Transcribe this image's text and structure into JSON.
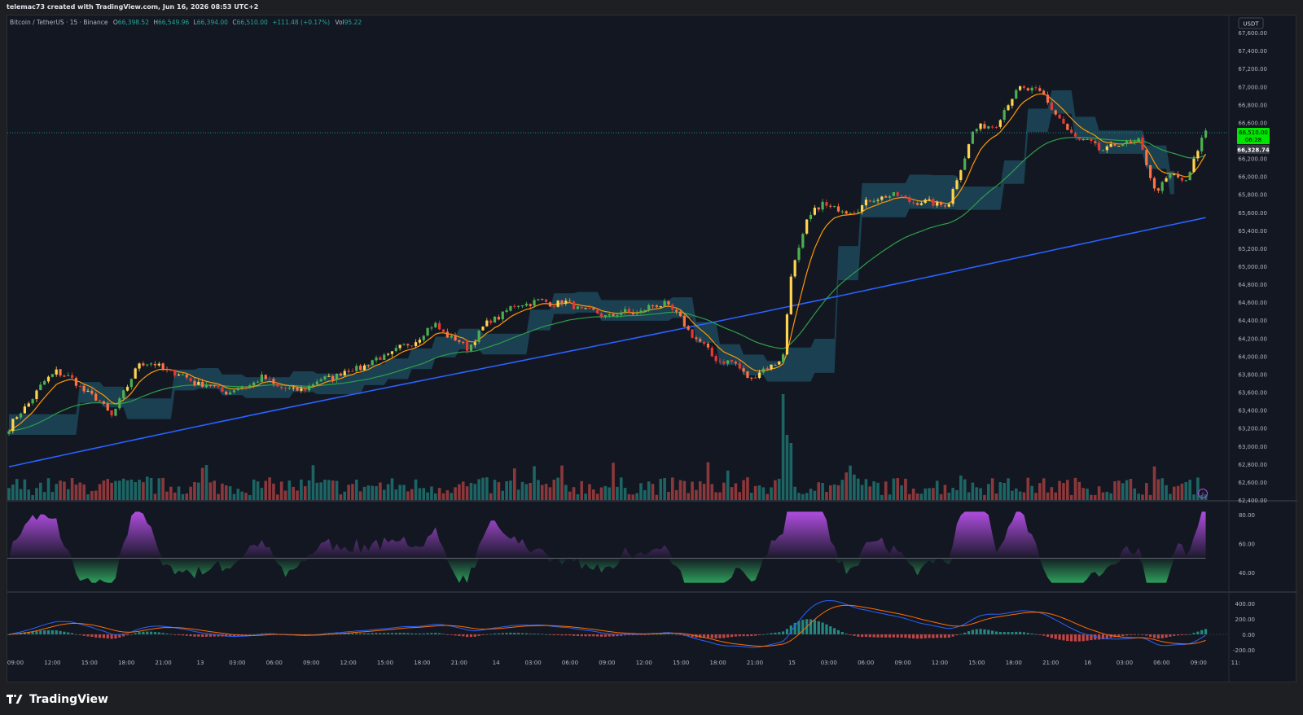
{
  "header": {
    "credit": "telemac73 created with TradingView.com, Jun 16, 2026 08:53 UTC+2"
  },
  "legend": {
    "symbol": "Bitcoin / TetherUS · 15 · Binance",
    "open_label": "O",
    "open": "66,398.52",
    "high_label": "H",
    "high": "66,549.96",
    "low_label": "L",
    "low": "66,394.00",
    "close_label": "C",
    "close": "66,510.00",
    "change": "+111.48 (+0.17%)",
    "vol_label": "Vol",
    "vol": "95.22"
  },
  "price_axis": {
    "currency": "USDT",
    "ticks": [
      "67,600.00",
      "67,400.00",
      "67,200.00",
      "67,000.00",
      "66,800.00",
      "66,600.00",
      "66,400.00",
      "66,200.00",
      "66,000.00",
      "65,800.00",
      "65,600.00",
      "65,400.00",
      "65,200.00",
      "65,000.00",
      "64,800.00",
      "64,600.00",
      "64,400.00",
      "64,200.00",
      "64,000.00",
      "63,800.00",
      "63,600.00",
      "63,400.00",
      "63,200.00",
      "63,000.00",
      "62,800.00",
      "62,600.00",
      "62,400.00"
    ],
    "last_price": "66,510.00",
    "countdown": "06:28",
    "indicator_value": "66,328.74"
  },
  "rsi_axis": {
    "ticks": [
      "80.00",
      "60.00",
      "40.00"
    ]
  },
  "macd_axis": {
    "ticks": [
      "400.00",
      "200.00",
      "0.00",
      "-200.00"
    ]
  },
  "time_axis": {
    "labels": [
      "09:00",
      "12:00",
      "15:00",
      "18:00",
      "21:00",
      "13",
      "03:00",
      "06:00",
      "09:00",
      "12:00",
      "15:00",
      "18:00",
      "21:00",
      "14",
      "03:00",
      "06:00",
      "09:00",
      "12:00",
      "15:00",
      "18:00",
      "21:00",
      "15",
      "03:00",
      "06:00",
      "09:00",
      "12:00",
      "15:00",
      "18:00",
      "21:00",
      "16",
      "03:00",
      "06:00",
      "09:00",
      "11:"
    ]
  },
  "footer": {
    "brand": "TradingView"
  },
  "colors": {
    "background": "#131722",
    "bull": "#4caf50",
    "bear": "#e53935",
    "highlight": "#ffd54f",
    "ema_fast": "#ff9800",
    "ema_mid": "#2e9e4a",
    "ema_slow": "#2962ff",
    "cloud": "#1d4f63",
    "rsi_high": "#b04de0",
    "rsi_low": "#2e9e5a",
    "macd": "#2962ff",
    "signal": "#ff6d00",
    "last_price_tag": "#00e600"
  },
  "chart_data": {
    "type": "candlestick",
    "symbol": "BTCUSDT",
    "interval": "15",
    "exchange": "Binance",
    "ylim": [
      62400,
      67700
    ],
    "anchors": [
      {
        "t": 0,
        "p": 63200
      },
      {
        "t": 6,
        "p": 63550
      },
      {
        "t": 12,
        "p": 63850
      },
      {
        "t": 20,
        "p": 63600
      },
      {
        "t": 26,
        "p": 63350
      },
      {
        "t": 30,
        "p": 63650
      },
      {
        "t": 33,
        "p": 63950
      },
      {
        "t": 40,
        "p": 63850
      },
      {
        "t": 48,
        "p": 63700
      },
      {
        "t": 56,
        "p": 63600
      },
      {
        "t": 64,
        "p": 63750
      },
      {
        "t": 72,
        "p": 63600
      },
      {
        "t": 80,
        "p": 63750
      },
      {
        "t": 90,
        "p": 63900
      },
      {
        "t": 100,
        "p": 64100
      },
      {
        "t": 108,
        "p": 64350
      },
      {
        "t": 112,
        "p": 64200
      },
      {
        "t": 116,
        "p": 64100
      },
      {
        "t": 122,
        "p": 64400
      },
      {
        "t": 130,
        "p": 64600
      },
      {
        "t": 140,
        "p": 64600
      },
      {
        "t": 150,
        "p": 64450
      },
      {
        "t": 160,
        "p": 64500
      },
      {
        "t": 166,
        "p": 64600
      },
      {
        "t": 172,
        "p": 64300
      },
      {
        "t": 178,
        "p": 64000
      },
      {
        "t": 184,
        "p": 63900
      },
      {
        "t": 188,
        "p": 63750
      },
      {
        "t": 196,
        "p": 64000
      },
      {
        "t": 198,
        "p": 64900
      },
      {
        "t": 202,
        "p": 65500
      },
      {
        "t": 206,
        "p": 65700
      },
      {
        "t": 212,
        "p": 65600
      },
      {
        "t": 222,
        "p": 65800
      },
      {
        "t": 232,
        "p": 65700
      },
      {
        "t": 238,
        "p": 65700
      },
      {
        "t": 244,
        "p": 66500
      },
      {
        "t": 250,
        "p": 66600
      },
      {
        "t": 256,
        "p": 67000
      },
      {
        "t": 262,
        "p": 66900
      },
      {
        "t": 268,
        "p": 66500
      },
      {
        "t": 276,
        "p": 66300
      },
      {
        "t": 286,
        "p": 66400
      },
      {
        "t": 290,
        "p": 65850
      },
      {
        "t": 294,
        "p": 66000
      },
      {
        "t": 298,
        "p": 65950
      },
      {
        "t": 303,
        "p": 66510
      }
    ],
    "series": [
      {
        "name": "Volume",
        "type": "bar"
      },
      {
        "name": "RSI",
        "type": "area"
      },
      {
        "name": "MACD",
        "type": "line"
      }
    ]
  }
}
